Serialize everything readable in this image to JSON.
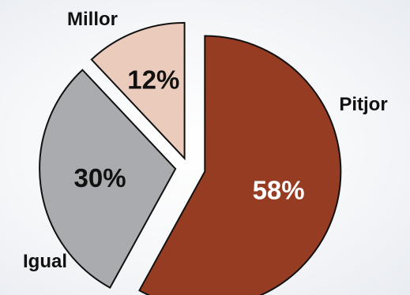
{
  "chart_data": {
    "type": "pie",
    "exploded": true,
    "legend": "none",
    "slices": [
      {
        "label": "Pitjor",
        "value": 58,
        "value_label": "58%",
        "color": "#963c22",
        "text_color": "#ffffff"
      },
      {
        "label": "Igual",
        "value": 30,
        "value_label": "30%",
        "color": "#a9abae",
        "text_color": "#111111"
      },
      {
        "label": "Millor",
        "value": 12,
        "value_label": "12%",
        "color": "#ebcbbb",
        "text_color": "#111111"
      }
    ]
  }
}
